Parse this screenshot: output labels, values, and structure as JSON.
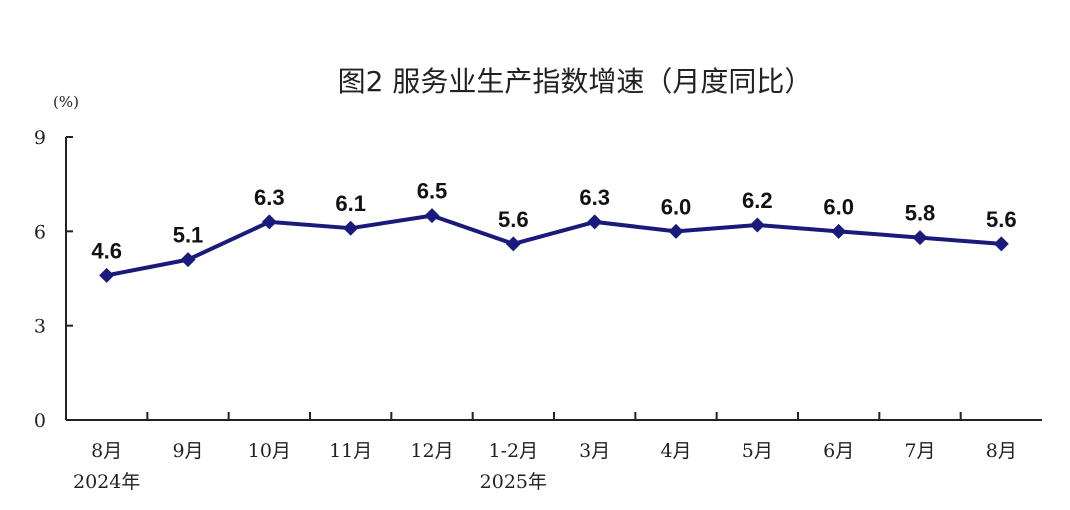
{
  "colors": {
    "series": "#1a1a7c",
    "axis": "#222222",
    "text": "#222222"
  },
  "chart_data": {
    "type": "line",
    "title": "图2   服务业生产指数增速（月度同比）",
    "unit": "(%)",
    "xlabel": "",
    "ylabel": "",
    "categories": [
      "8月",
      "9月",
      "10月",
      "11月",
      "12月",
      "1-2月",
      "3月",
      "4月",
      "5月",
      "6月",
      "7月",
      "8月"
    ],
    "year_labels": [
      {
        "category_index": 0,
        "label": "2024年"
      },
      {
        "category_index": 5,
        "label": "2025年"
      }
    ],
    "series": [
      {
        "values": [
          4.6,
          5.1,
          6.3,
          6.1,
          6.5,
          5.6,
          6.3,
          6.0,
          6.2,
          6.0,
          5.8,
          5.6
        ],
        "data_labels": [
          "4.6",
          "5.1",
          "6.3",
          "6.1",
          "6.5",
          "5.6",
          "6.3",
          "6.0",
          "6.2",
          "6.0",
          "5.8",
          "5.6"
        ]
      }
    ],
    "ylim": [
      0,
      9
    ],
    "yticks": [
      "0",
      "3",
      "6",
      "9"
    ],
    "grid": false,
    "legend": "none",
    "marker": "diamond"
  }
}
